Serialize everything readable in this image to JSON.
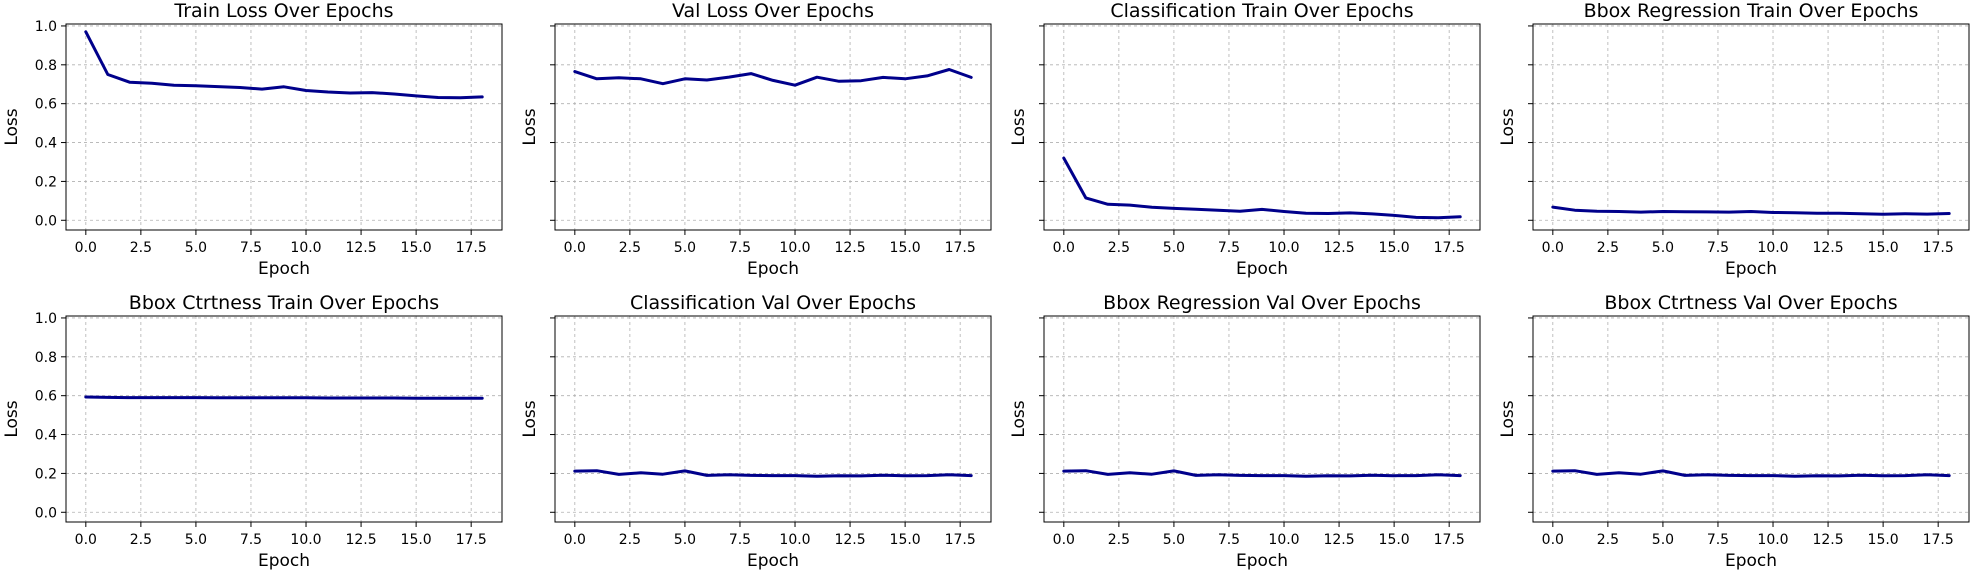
{
  "colors": {
    "line": "#00008b"
  },
  "chart_data": [
    {
      "type": "line",
      "title": "Train Loss Over Epochs",
      "xlabel": "Epoch",
      "ylabel": "Loss",
      "xlim": [
        -0.9,
        18.9
      ],
      "ylim": [
        -0.05,
        1.01
      ],
      "xticks": [
        "0.0",
        "2.5",
        "5.0",
        "7.5",
        "10.0",
        "12.5",
        "15.0",
        "17.5"
      ],
      "yticks": [
        "0.0",
        "0.2",
        "0.4",
        "0.6",
        "0.8",
        "1.0"
      ],
      "show_ytick_labels": true,
      "grid": true,
      "x": [
        0,
        1,
        2,
        3,
        4,
        5,
        6,
        7,
        8,
        9,
        10,
        11,
        12,
        13,
        14,
        15,
        16,
        17,
        18
      ],
      "values": [
        0.97,
        0.75,
        0.71,
        0.705,
        0.695,
        0.692,
        0.688,
        0.683,
        0.675,
        0.687,
        0.668,
        0.66,
        0.655,
        0.657,
        0.65,
        0.64,
        0.632,
        0.63,
        0.635
      ]
    },
    {
      "type": "line",
      "title": "Val Loss Over Epochs",
      "xlabel": "Epoch",
      "ylabel": "Loss",
      "xlim": [
        -0.9,
        18.9
      ],
      "ylim": [
        -0.05,
        1.01
      ],
      "xticks": [
        "0.0",
        "2.5",
        "5.0",
        "7.5",
        "10.0",
        "12.5",
        "15.0",
        "17.5"
      ],
      "yticks": [
        "0.0",
        "0.2",
        "0.4",
        "0.6",
        "0.8",
        "1.0"
      ],
      "show_ytick_labels": false,
      "grid": true,
      "x": [
        0,
        1,
        2,
        3,
        4,
        5,
        6,
        7,
        8,
        9,
        10,
        11,
        12,
        13,
        14,
        15,
        16,
        17,
        18
      ],
      "values": [
        0.765,
        0.728,
        0.733,
        0.728,
        0.703,
        0.728,
        0.722,
        0.737,
        0.755,
        0.72,
        0.695,
        0.736,
        0.715,
        0.718,
        0.735,
        0.728,
        0.743,
        0.776,
        0.735
      ]
    },
    {
      "type": "line",
      "title": "Classification Train Over Epochs",
      "xlabel": "Epoch",
      "ylabel": "Loss",
      "xlim": [
        -0.9,
        18.9
      ],
      "ylim": [
        -0.05,
        1.01
      ],
      "xticks": [
        "0.0",
        "2.5",
        "5.0",
        "7.5",
        "10.0",
        "12.5",
        "15.0",
        "17.5"
      ],
      "yticks": [
        "0.0",
        "0.2",
        "0.4",
        "0.6",
        "0.8",
        "1.0"
      ],
      "show_ytick_labels": false,
      "grid": true,
      "x": [
        0,
        1,
        2,
        3,
        4,
        5,
        6,
        7,
        8,
        9,
        10,
        11,
        12,
        13,
        14,
        15,
        16,
        17,
        18
      ],
      "values": [
        0.32,
        0.115,
        0.082,
        0.078,
        0.067,
        0.061,
        0.057,
        0.052,
        0.046,
        0.056,
        0.045,
        0.036,
        0.035,
        0.038,
        0.033,
        0.025,
        0.015,
        0.013,
        0.018
      ]
    },
    {
      "type": "line",
      "title": "Bbox Regression Train Over Epochs",
      "xlabel": "Epoch",
      "ylabel": "Loss",
      "xlim": [
        -0.9,
        18.9
      ],
      "ylim": [
        -0.05,
        1.01
      ],
      "xticks": [
        "0.0",
        "2.5",
        "5.0",
        "7.5",
        "10.0",
        "12.5",
        "15.0",
        "17.5"
      ],
      "yticks": [
        "0.0",
        "0.2",
        "0.4",
        "0.6",
        "0.8",
        "1.0"
      ],
      "show_ytick_labels": false,
      "grid": true,
      "x": [
        0,
        1,
        2,
        3,
        4,
        5,
        6,
        7,
        8,
        9,
        10,
        11,
        12,
        13,
        14,
        15,
        16,
        17,
        18
      ],
      "values": [
        0.068,
        0.052,
        0.046,
        0.045,
        0.042,
        0.045,
        0.044,
        0.043,
        0.042,
        0.045,
        0.04,
        0.039,
        0.036,
        0.036,
        0.034,
        0.031,
        0.034,
        0.032,
        0.035
      ]
    },
    {
      "type": "line",
      "title": "Bbox Ctrtness Train Over Epochs",
      "xlabel": "Epoch",
      "ylabel": "Loss",
      "xlim": [
        -0.9,
        18.9
      ],
      "ylim": [
        -0.05,
        1.01
      ],
      "xticks": [
        "0.0",
        "2.5",
        "5.0",
        "7.5",
        "10.0",
        "12.5",
        "15.0",
        "17.5"
      ],
      "yticks": [
        "0.0",
        "0.2",
        "0.4",
        "0.6",
        "0.8",
        "1.0"
      ],
      "show_ytick_labels": true,
      "grid": true,
      "x": [
        0,
        1,
        2,
        3,
        4,
        5,
        6,
        7,
        8,
        9,
        10,
        11,
        12,
        13,
        14,
        15,
        16,
        17,
        18
      ],
      "values": [
        0.593,
        0.591,
        0.59,
        0.59,
        0.59,
        0.59,
        0.589,
        0.589,
        0.589,
        0.589,
        0.589,
        0.588,
        0.588,
        0.588,
        0.588,
        0.587,
        0.587,
        0.587,
        0.587
      ]
    },
    {
      "type": "line",
      "title": "Classification Val Over Epochs",
      "xlabel": "Epoch",
      "ylabel": "Loss",
      "xlim": [
        -0.9,
        18.9
      ],
      "ylim": [
        -0.05,
        1.01
      ],
      "xticks": [
        "0.0",
        "2.5",
        "5.0",
        "7.5",
        "10.0",
        "12.5",
        "15.0",
        "17.5"
      ],
      "yticks": [
        "0.0",
        "0.2",
        "0.4",
        "0.6",
        "0.8",
        "1.0"
      ],
      "show_ytick_labels": false,
      "grid": true,
      "x": [
        0,
        1,
        2,
        3,
        4,
        5,
        6,
        7,
        8,
        9,
        10,
        11,
        12,
        13,
        14,
        15,
        16,
        17,
        18
      ],
      "values": [
        0.212,
        0.214,
        0.195,
        0.203,
        0.196,
        0.213,
        0.19,
        0.193,
        0.19,
        0.189,
        0.189,
        0.185,
        0.188,
        0.187,
        0.191,
        0.188,
        0.189,
        0.193,
        0.189
      ]
    },
    {
      "type": "line",
      "title": "Bbox Regression Val Over Epochs",
      "xlabel": "Epoch",
      "ylabel": "Loss",
      "xlim": [
        -0.9,
        18.9
      ],
      "ylim": [
        -0.05,
        1.01
      ],
      "xticks": [
        "0.0",
        "2.5",
        "5.0",
        "7.5",
        "10.0",
        "12.5",
        "15.0",
        "17.5"
      ],
      "yticks": [
        "0.0",
        "0.2",
        "0.4",
        "0.6",
        "0.8",
        "1.0"
      ],
      "show_ytick_labels": false,
      "grid": true,
      "x": [
        0,
        1,
        2,
        3,
        4,
        5,
        6,
        7,
        8,
        9,
        10,
        11,
        12,
        13,
        14,
        15,
        16,
        17,
        18
      ],
      "values": [
        0.212,
        0.214,
        0.195,
        0.203,
        0.196,
        0.213,
        0.19,
        0.193,
        0.19,
        0.189,
        0.189,
        0.185,
        0.188,
        0.187,
        0.191,
        0.188,
        0.189,
        0.193,
        0.189
      ]
    },
    {
      "type": "line",
      "title": "Bbox Ctrtness Val Over Epochs",
      "xlabel": "Epoch",
      "ylabel": "Loss",
      "xlim": [
        -0.9,
        18.9
      ],
      "ylim": [
        -0.05,
        1.01
      ],
      "xticks": [
        "0.0",
        "2.5",
        "5.0",
        "7.5",
        "10.0",
        "12.5",
        "15.0",
        "17.5"
      ],
      "yticks": [
        "0.0",
        "0.2",
        "0.4",
        "0.6",
        "0.8",
        "1.0"
      ],
      "show_ytick_labels": false,
      "grid": true,
      "x": [
        0,
        1,
        2,
        3,
        4,
        5,
        6,
        7,
        8,
        9,
        10,
        11,
        12,
        13,
        14,
        15,
        16,
        17,
        18
      ],
      "values": [
        0.212,
        0.214,
        0.195,
        0.203,
        0.196,
        0.213,
        0.19,
        0.193,
        0.19,
        0.189,
        0.189,
        0.185,
        0.188,
        0.187,
        0.191,
        0.188,
        0.189,
        0.193,
        0.189
      ]
    }
  ]
}
